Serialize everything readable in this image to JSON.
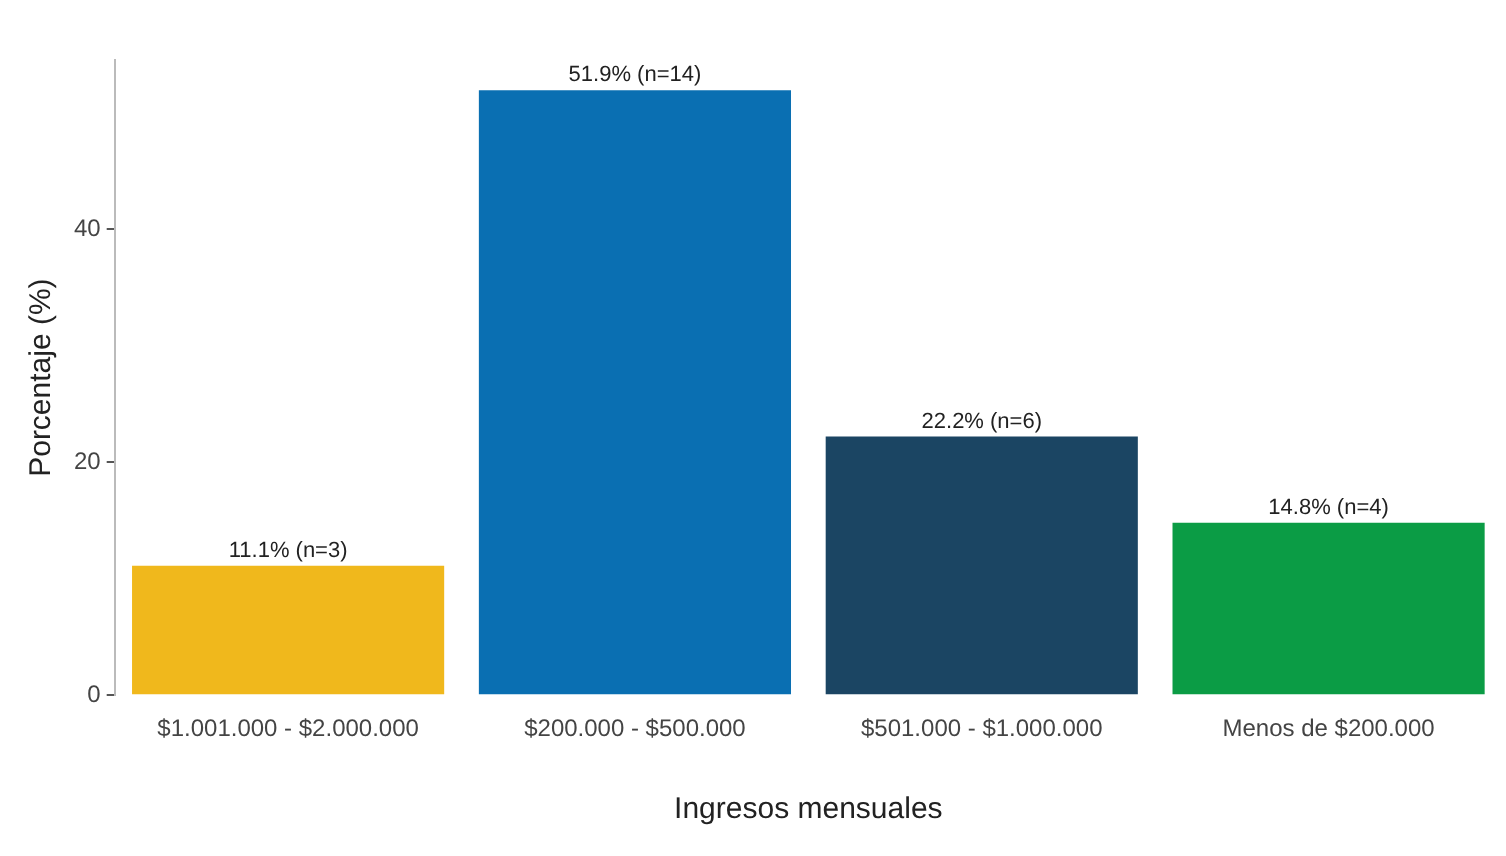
{
  "chart_data": {
    "type": "bar",
    "xlabel": "Ingresos mensuales",
    "ylabel": "Porcentaje (%)",
    "categories": [
      "$1.001.000 - $2.000.000",
      "$200.000 - $500.000",
      "$501.000 - $1.000.000",
      "Menos de $200.000"
    ],
    "values": [
      11.1,
      51.9,
      22.2,
      14.8
    ],
    "colors": [
      "#f0b81c",
      "#0a6fb2",
      "#1b4563",
      "#0b9c45"
    ],
    "value_labels": [
      "11.1% (n=3)",
      "51.9% (n=14)",
      "22.2% (n=6)",
      "14.8% (n=4)"
    ],
    "ylim": [
      0,
      54.5
    ],
    "yticks": [
      0,
      20,
      40
    ],
    "grid": false,
    "legend": false
  }
}
